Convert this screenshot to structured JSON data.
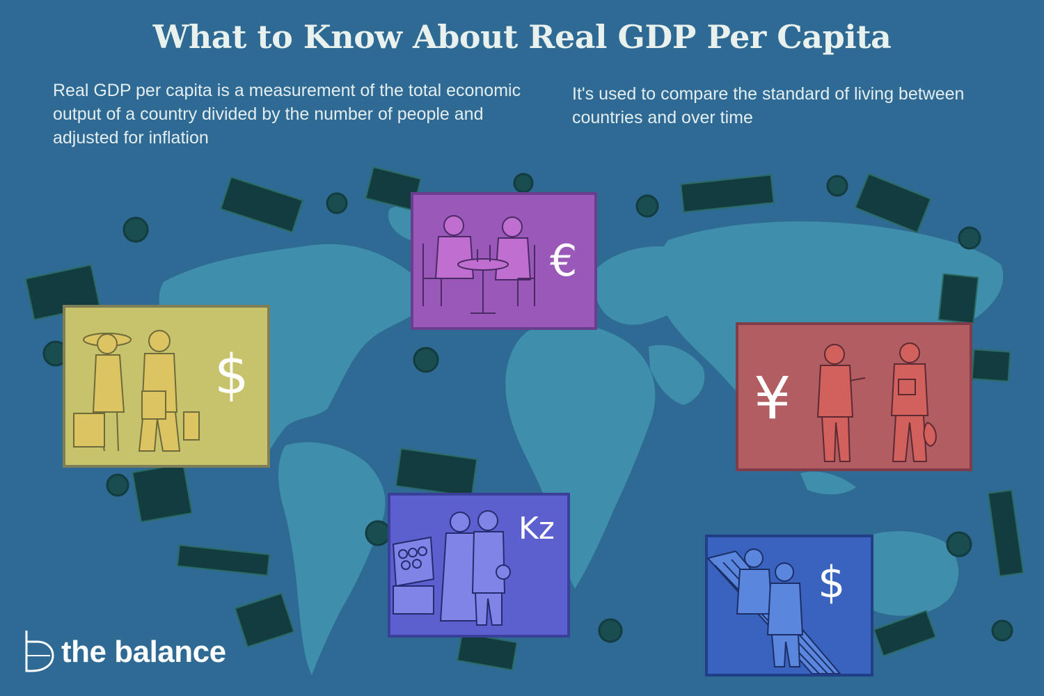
{
  "title": "What to Know About Real GDP Per Capita",
  "paragraphs": {
    "left": "Real GDP per capita is a measurement of the total economic output of a country divided by the number of people and adjusted for inflation",
    "right": "It's used to compare the standard of living between countries and over time"
  },
  "panels": {
    "shoppers": {
      "symbol": "$",
      "color": "#c7c26c"
    },
    "dining": {
      "symbol": "€",
      "color": "#9a59b8"
    },
    "workers": {
      "symbol": "¥",
      "color": "#b15d62"
    },
    "market": {
      "symbol": "Kz",
      "color": "#5c60cf"
    },
    "escalator": {
      "symbol": "$",
      "color": "#3a63c0"
    }
  },
  "brand": {
    "name": "the balance"
  },
  "colors": {
    "background": "#2e6a93",
    "map": "#3f8eab",
    "bills": "#123c40"
  },
  "icons": [
    "world-map",
    "banknote-icon",
    "coin-icon",
    "dollar-sign-icon",
    "euro-sign-icon",
    "yen-sign-icon",
    "kwanza-sign-icon",
    "the-balance-logo"
  ]
}
